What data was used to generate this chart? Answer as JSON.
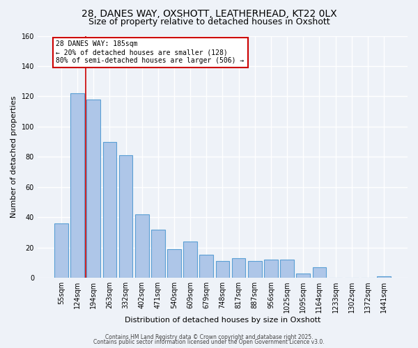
{
  "title": "28, DANES WAY, OXSHOTT, LEATHERHEAD, KT22 0LX",
  "subtitle": "Size of property relative to detached houses in Oxshott",
  "xlabel": "Distribution of detached houses by size in Oxshott",
  "ylabel": "Number of detached properties",
  "bar_labels": [
    "55sqm",
    "124sqm",
    "194sqm",
    "263sqm",
    "332sqm",
    "402sqm",
    "471sqm",
    "540sqm",
    "609sqm",
    "679sqm",
    "748sqm",
    "817sqm",
    "887sqm",
    "956sqm",
    "1025sqm",
    "1095sqm",
    "1164sqm",
    "1233sqm",
    "1302sqm",
    "1372sqm",
    "1441sqm"
  ],
  "bar_values": [
    36,
    122,
    118,
    90,
    81,
    42,
    32,
    19,
    24,
    15,
    11,
    13,
    11,
    12,
    12,
    3,
    7,
    0,
    0,
    0,
    1
  ],
  "bar_color": "#aec6e8",
  "bar_edge_color": "#5a9fd4",
  "vline_color": "#cc0000",
  "ylim": [
    0,
    160
  ],
  "yticks": [
    0,
    20,
    40,
    60,
    80,
    100,
    120,
    140,
    160
  ],
  "annotation_line1": "28 DANES WAY: 185sqm",
  "annotation_line2": "← 20% of detached houses are smaller (128)",
  "annotation_line3": "80% of semi-detached houses are larger (506) →",
  "footer_line1": "Contains HM Land Registry data © Crown copyright and database right 2025.",
  "footer_line2": "Contains public sector information licensed under the Open Government Licence v3.0.",
  "background_color": "#eef2f8",
  "plot_background_color": "#eef2f8",
  "grid_color": "#ffffff",
  "title_fontsize": 10,
  "subtitle_fontsize": 9,
  "tick_fontsize": 7,
  "axis_label_fontsize": 8
}
